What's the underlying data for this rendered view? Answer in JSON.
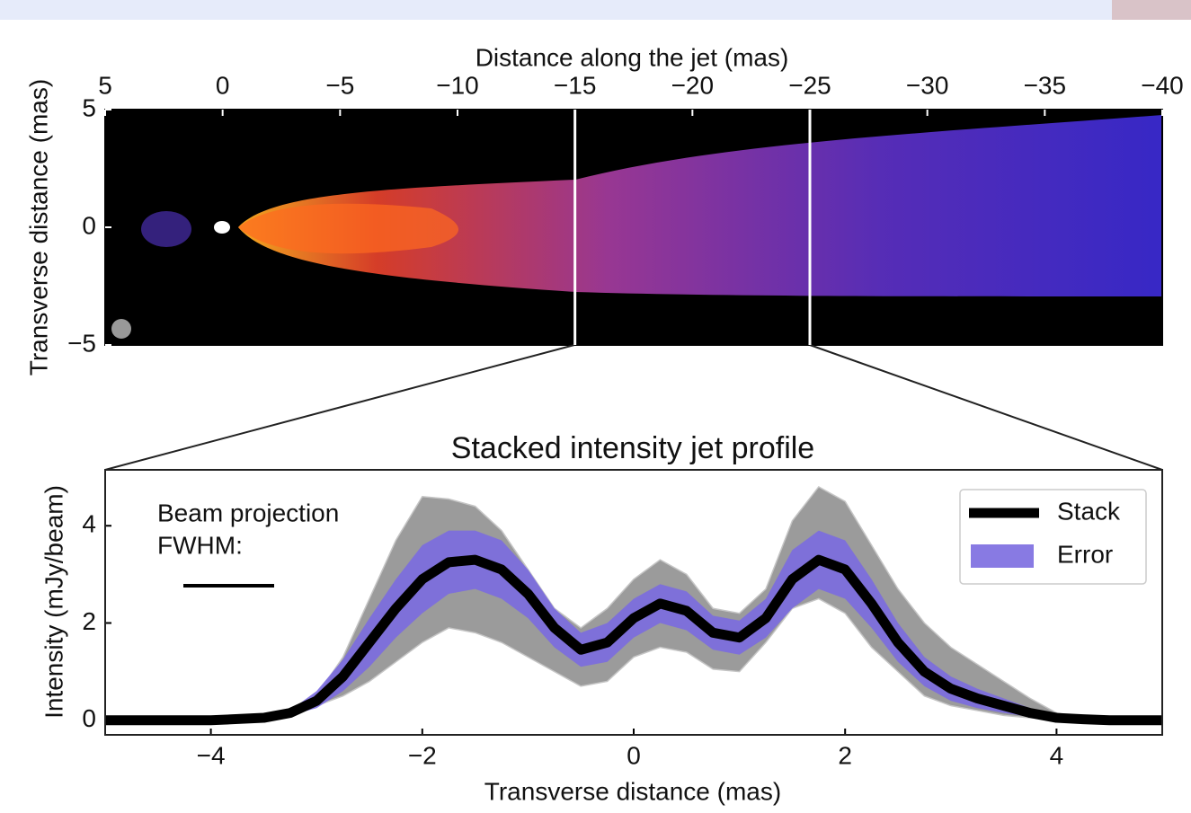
{
  "chart_data": [
    {
      "type": "image",
      "xlabel": "Distance along the jet (mas)",
      "ylabel": "Transverse distance (mas)",
      "xlim": [
        5,
        -40
      ],
      "ylim": [
        -5,
        5
      ],
      "xticks": [
        5,
        0,
        {
          "value": -5,
          "label": "−5"
        },
        {
          "value": -10,
          "label": "−10"
        },
        {
          "value": -15,
          "label": "−15"
        },
        {
          "value": -20,
          "label": "−20"
        },
        {
          "value": -25,
          "label": "−25"
        },
        {
          "value": -30,
          "label": "−30"
        },
        {
          "value": -35,
          "label": "−35"
        },
        {
          "value": -40,
          "label": "−40"
        }
      ],
      "yticks": [
        {
          "value": -5,
          "label": "−5"
        },
        0,
        5
      ],
      "markers": [
        -15,
        -25
      ],
      "marker_color": "#ffffff"
    },
    {
      "type": "line",
      "title": "Stacked intensity jet profile",
      "xlabel": "Transverse distance (mas)",
      "ylabel": "Intensity (mJy/beam)",
      "xlim": [
        -5,
        5
      ],
      "ylim": [
        -0.3,
        5.15
      ],
      "xticks": [
        {
          "value": -4,
          "label": "−4"
        },
        {
          "value": -2,
          "label": "−2"
        },
        0,
        2,
        4
      ],
      "yticks": [
        0,
        2,
        4
      ],
      "annotation": [
        "Beam projection",
        "FWHM:"
      ],
      "legend": "upper right",
      "x": [
        -5,
        -4.5,
        -4,
        -3.5,
        -3.25,
        -3,
        -2.75,
        -2.5,
        -2.25,
        -2,
        -1.75,
        -1.5,
        -1.25,
        -1,
        -0.75,
        -0.5,
        -0.25,
        0,
        0.25,
        0.5,
        0.75,
        1,
        1.25,
        1.5,
        1.75,
        2,
        2.25,
        2.5,
        2.75,
        3,
        3.25,
        3.5,
        3.75,
        4,
        4.25,
        4.5,
        4.75,
        5
      ],
      "profile_range": {
        "color": "#8a8a8a",
        "lower": [
          0,
          0,
          0,
          0.02,
          0.1,
          0.3,
          0.5,
          0.8,
          1.2,
          1.6,
          1.9,
          1.8,
          1.6,
          1.3,
          1.0,
          0.7,
          0.8,
          1.3,
          1.5,
          1.4,
          1.05,
          1.0,
          1.6,
          2.3,
          2.5,
          2.2,
          1.5,
          1.0,
          0.5,
          0.3,
          0.2,
          0.1,
          0.05,
          0.01,
          0,
          0,
          0,
          0
        ],
        "upper": [
          0,
          0,
          0,
          0.05,
          0.2,
          0.5,
          1.3,
          2.5,
          3.7,
          4.6,
          4.55,
          4.4,
          3.9,
          3.1,
          2.3,
          1.9,
          2.3,
          2.9,
          3.3,
          3.0,
          2.3,
          2.2,
          2.7,
          4.1,
          4.8,
          4.5,
          3.6,
          2.7,
          2.0,
          1.5,
          1.15,
          0.8,
          0.45,
          0.15,
          0.05,
          0,
          0,
          0
        ]
      },
      "series": [
        {
          "name": "Stack",
          "color": "#000000",
          "values": [
            0,
            0,
            0,
            0.05,
            0.15,
            0.4,
            0.9,
            1.6,
            2.3,
            2.9,
            3.25,
            3.3,
            3.1,
            2.6,
            1.9,
            1.45,
            1.6,
            2.1,
            2.4,
            2.25,
            1.8,
            1.7,
            2.1,
            2.9,
            3.3,
            3.1,
            2.4,
            1.6,
            1.0,
            0.65,
            0.45,
            0.3,
            0.15,
            0.05,
            0.02,
            0,
            0,
            0
          ]
        },
        {
          "name": "Error",
          "color": "#7b6be0",
          "lower": [
            0,
            0,
            0,
            0.03,
            0.1,
            0.25,
            0.6,
            1.1,
            1.7,
            2.2,
            2.6,
            2.7,
            2.5,
            2.1,
            1.5,
            1.1,
            1.2,
            1.7,
            2.0,
            1.85,
            1.45,
            1.35,
            1.7,
            2.3,
            2.7,
            2.5,
            1.9,
            1.2,
            0.7,
            0.4,
            0.25,
            0.15,
            0.07,
            0.02,
            0.01,
            0,
            0,
            0
          ],
          "upper": [
            0,
            0,
            0,
            0.07,
            0.2,
            0.6,
            1.25,
            2.1,
            2.9,
            3.6,
            3.9,
            3.9,
            3.7,
            3.1,
            2.3,
            1.8,
            2.0,
            2.5,
            2.8,
            2.65,
            2.15,
            2.05,
            2.5,
            3.5,
            3.9,
            3.7,
            2.9,
            2.0,
            1.3,
            0.9,
            0.65,
            0.45,
            0.25,
            0.1,
            0.04,
            0,
            0,
            0
          ]
        }
      ]
    }
  ]
}
